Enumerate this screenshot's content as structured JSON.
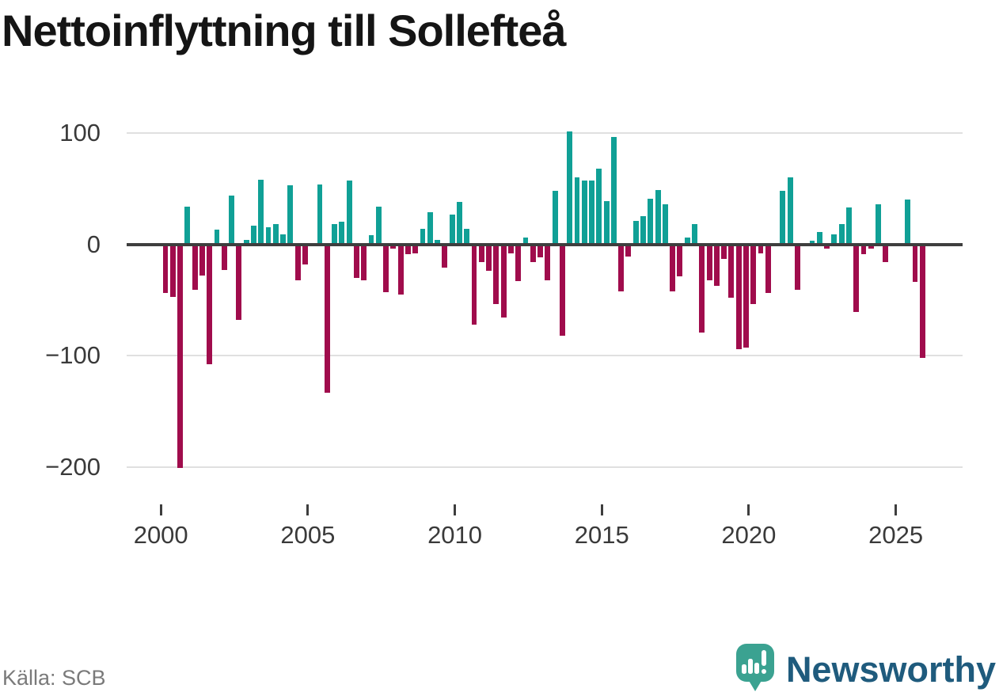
{
  "title": "Nettoinflyttning till Sollefteå",
  "source": "Källa: SCB",
  "branding": {
    "name": "Newsworthy",
    "icon": "speech-bubble-bar-chart-icon",
    "text_color": "#1f5b7d",
    "icon_color": "#3ba291"
  },
  "y_axis": {
    "ticks": [
      {
        "label": "100",
        "value": 100
      },
      {
        "label": "0",
        "value": 0
      },
      {
        "label": "−100",
        "value": -100
      },
      {
        "label": "−200",
        "value": -200
      }
    ]
  },
  "x_axis": {
    "ticks": [
      {
        "label": "2000",
        "year": 2000
      },
      {
        "label": "2005",
        "year": 2005
      },
      {
        "label": "2010",
        "year": 2010
      },
      {
        "label": "2015",
        "year": 2015
      },
      {
        "label": "2020",
        "year": 2020
      },
      {
        "label": "2025",
        "year": 2025
      }
    ]
  },
  "chart_data": {
    "type": "bar",
    "title": "Nettoinflyttning till Sollefteå",
    "frequency": "quarterly",
    "xlabel": "",
    "ylabel": "",
    "ylim": [
      -220,
      115
    ],
    "grid": "horizontal",
    "legend": "none",
    "colors": {
      "positive": "#10a096",
      "negative": "#a00c4c"
    },
    "years": [
      {
        "year": 2000,
        "values": [
          -44,
          -47,
          -201,
          34
        ]
      },
      {
        "year": 2001,
        "values": [
          -41,
          -28,
          -108,
          13
        ]
      },
      {
        "year": 2002,
        "values": [
          -23,
          44,
          -68,
          4
        ]
      },
      {
        "year": 2003,
        "values": [
          17,
          58,
          15,
          18
        ]
      },
      {
        "year": 2004,
        "values": [
          9,
          53,
          -32,
          -18
        ]
      },
      {
        "year": 2005,
        "values": [
          0,
          54,
          -133,
          18
        ]
      },
      {
        "year": 2006,
        "values": [
          20,
          57,
          -30,
          -32
        ]
      },
      {
        "year": 2007,
        "values": [
          8,
          34,
          -43,
          -4
        ]
      },
      {
        "year": 2008,
        "values": [
          -45,
          -9,
          -8,
          14
        ]
      },
      {
        "year": 2009,
        "values": [
          29,
          4,
          -21,
          27
        ]
      },
      {
        "year": 2010,
        "values": [
          38,
          14,
          -72,
          -16
        ]
      },
      {
        "year": 2011,
        "values": [
          -24,
          -54,
          -66,
          -8
        ]
      },
      {
        "year": 2012,
        "values": [
          -33,
          6,
          -16,
          -12
        ]
      },
      {
        "year": 2013,
        "values": [
          -32,
          48,
          -82,
          101
        ]
      },
      {
        "year": 2014,
        "values": [
          60,
          57,
          57,
          68
        ]
      },
      {
        "year": 2015,
        "values": [
          39,
          96,
          -42,
          -11
        ]
      },
      {
        "year": 2016,
        "values": [
          21,
          25,
          41,
          49
        ]
      },
      {
        "year": 2017,
        "values": [
          36,
          -42,
          -29,
          6
        ]
      },
      {
        "year": 2018,
        "values": [
          18,
          -79,
          -32,
          -37
        ]
      },
      {
        "year": 2019,
        "values": [
          -13,
          -48,
          -94,
          -93
        ]
      },
      {
        "year": 2020,
        "values": [
          -54,
          -8,
          -44,
          0
        ]
      },
      {
        "year": 2021,
        "values": [
          48,
          60,
          -41,
          0
        ]
      },
      {
        "year": 2022,
        "values": [
          3,
          11,
          -4,
          9
        ]
      },
      {
        "year": 2023,
        "values": [
          18,
          33,
          -61,
          -9
        ]
      },
      {
        "year": 2024,
        "values": [
          -4,
          36,
          -16,
          0
        ]
      },
      {
        "year": 2025,
        "values": [
          0,
          40,
          -34,
          -102
        ]
      }
    ]
  }
}
